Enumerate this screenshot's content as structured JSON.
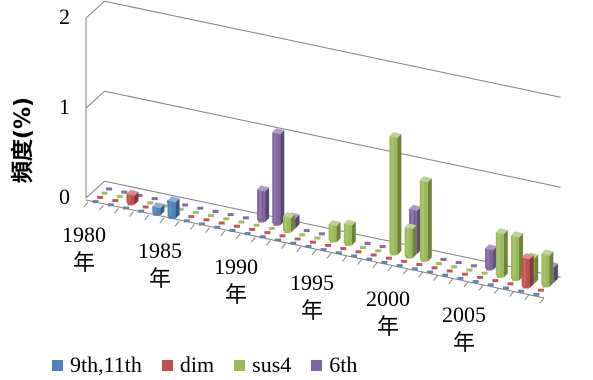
{
  "chart_data": {
    "type": "bar",
    "subtype": "3d-column",
    "ylabel": "頻度(%)",
    "ylim": [
      0,
      2
    ],
    "yticks": [
      "0",
      "1",
      "2"
    ],
    "grid": true,
    "legend_position": "bottom",
    "years": [
      1980,
      1981,
      1982,
      1983,
      1984,
      1985,
      1986,
      1987,
      1988,
      1989,
      1990,
      1991,
      1992,
      1993,
      1994,
      1995,
      1996,
      1997,
      1998,
      1999,
      2000,
      2001,
      2002,
      2003,
      2004,
      2005,
      2006,
      2007,
      2008,
      2009
    ],
    "xtick_labels": [
      {
        "year": 1980,
        "line1": "1980",
        "line2": "年"
      },
      {
        "year": 1985,
        "line1": "1985",
        "line2": "年"
      },
      {
        "year": 1990,
        "line1": "1990",
        "line2": "年"
      },
      {
        "year": 1995,
        "line1": "1995",
        "line2": "年"
      },
      {
        "year": 2000,
        "line1": "2000",
        "line2": "年"
      },
      {
        "year": 2005,
        "line1": "2005",
        "line2": "年"
      }
    ],
    "series": [
      {
        "name": "9th,11th",
        "color": "#4f81bd",
        "values": [
          0,
          0,
          0,
          0,
          0.08,
          0.18,
          0,
          0,
          0,
          0,
          0,
          0,
          0,
          0,
          0,
          0,
          0,
          0,
          0,
          0,
          0,
          0,
          0,
          0,
          0,
          0,
          0,
          0,
          0,
          0
        ]
      },
      {
        "name": "dim",
        "color": "#c0504d",
        "values": [
          0,
          0,
          0.1,
          0,
          0,
          0,
          0,
          0,
          0,
          0,
          0,
          0,
          0,
          0,
          0,
          0,
          0,
          0,
          0,
          0,
          0,
          0,
          0,
          0,
          0,
          0,
          0,
          0,
          0.32,
          0
        ]
      },
      {
        "name": "sus4",
        "color": "#9bbb59",
        "values": [
          0,
          0,
          0,
          0,
          0,
          0,
          0,
          0,
          0,
          0,
          0,
          0,
          0.16,
          0,
          0,
          0.18,
          0.22,
          0,
          0,
          1.3,
          0.32,
          0.88,
          0,
          0,
          0,
          0,
          0.48,
          0.48,
          0.28,
          0.35
        ]
      },
      {
        "name": "6th",
        "color": "#8064a2",
        "values": [
          0,
          0,
          0,
          0,
          0,
          0,
          0,
          0,
          0,
          0,
          0.34,
          1.01,
          0.11,
          0,
          0,
          0,
          0,
          0,
          0,
          0,
          0.48,
          0,
          0,
          0,
          0,
          0.22,
          0,
          0,
          0,
          0.17
        ]
      }
    ]
  },
  "legend": [
    {
      "label": "9th,11th",
      "color": "#4f81bd"
    },
    {
      "label": "dim",
      "color": "#c0504d"
    },
    {
      "label": "sus4",
      "color": "#9bbb59"
    },
    {
      "label": "6th",
      "color": "#8064a2"
    }
  ]
}
